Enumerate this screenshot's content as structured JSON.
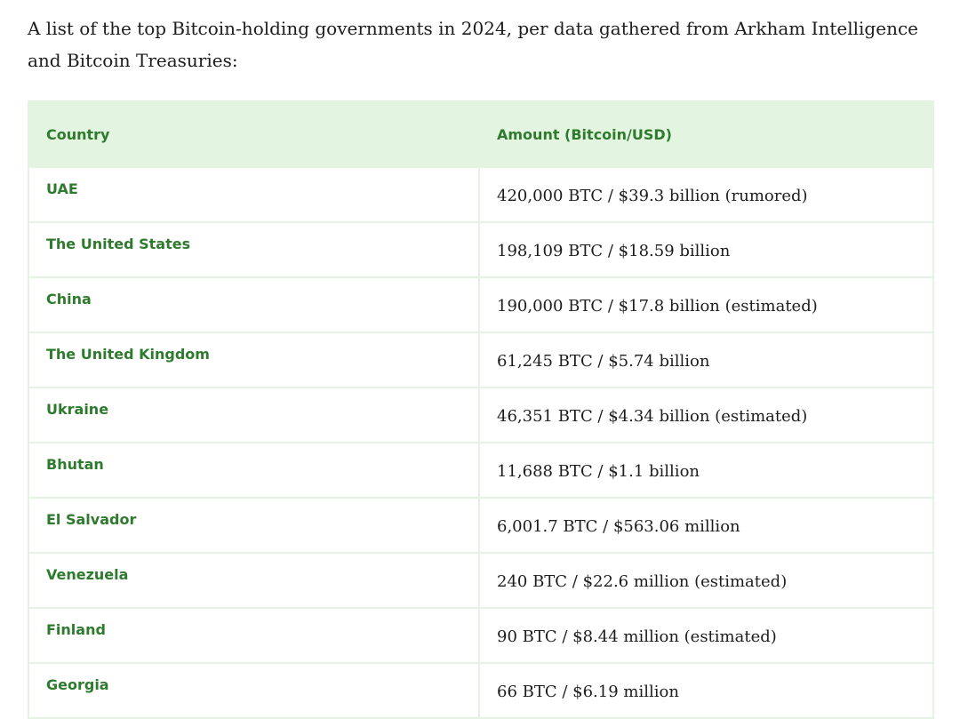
{
  "intro": "A list of the top Bitcoin-holding governments in 2024, per data gathered from Arkham Intelligence and Bitcoin Treasuries:",
  "table": {
    "headers": [
      "Country",
      "Amount (Bitcoin/USD)"
    ],
    "rows": [
      [
        "UAE",
        "420,000 BTC / $39.3 billion (rumored)"
      ],
      [
        "The United States",
        "198,109 BTC / $18.59 billion"
      ],
      [
        "China",
        "190,000 BTC / $17.8 billion (estimated)"
      ],
      [
        "The United Kingdom",
        "61,245 BTC / $5.74 billion"
      ],
      [
        "Ukraine",
        "46,351 BTC / $4.34 billion (estimated)"
      ],
      [
        "Bhutan",
        "11,688 BTC / $1.1 billion"
      ],
      [
        "El Salvador",
        "6,001.7 BTC / $563.06 million"
      ],
      [
        "Venezuela",
        "240 BTC / $22.6 million (estimated)"
      ],
      [
        "Finland",
        "90 BTC / $8.44 million (estimated)"
      ],
      [
        "Georgia",
        "66 BTC / $6.19 million"
      ]
    ]
  },
  "colors": {
    "header_bg": "#e3f5e0",
    "accent_green": "#2e7b2e",
    "row_border": "#e6f3e4",
    "body_text": "#1d1d1d"
  }
}
